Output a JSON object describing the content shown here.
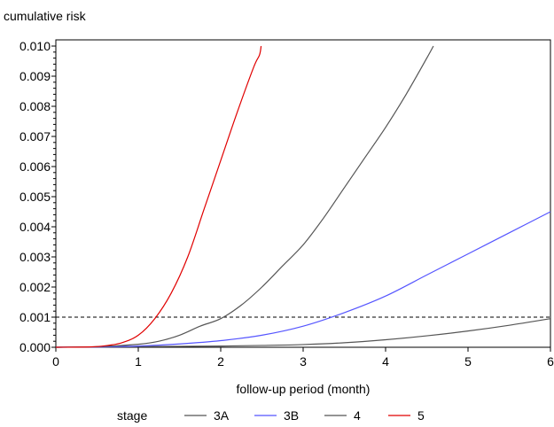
{
  "chart_data": {
    "type": "line",
    "ylabel": "cumulative risk",
    "xlabel": "follow-up period (month)",
    "xlim": [
      0,
      6
    ],
    "ylim": [
      0,
      0.01
    ],
    "x_ticks": [
      "0",
      "1",
      "2",
      "3",
      "4",
      "5",
      "6"
    ],
    "y_ticks": [
      "0.000",
      "0.001",
      "0.002",
      "0.003",
      "0.004",
      "0.005",
      "0.006",
      "0.007",
      "0.008",
      "0.009",
      "0.010"
    ],
    "grid": false,
    "legend_title": "stage",
    "legend_position": "bottom",
    "reference_line": {
      "y": 0.001,
      "style": "dashed",
      "color": "#000000"
    },
    "series": [
      {
        "name": "3A",
        "color": "#555555",
        "x": [
          0,
          0.5,
          1,
          1.5,
          2,
          2.5,
          3,
          3.5,
          4,
          4.5,
          5,
          5.5,
          6
        ],
        "y": [
          0,
          1e-05,
          2e-05,
          3e-05,
          4e-05,
          6e-05,
          9e-05,
          0.00015,
          0.00025,
          0.00038,
          0.00054,
          0.00073,
          0.00095
        ]
      },
      {
        "name": "3B",
        "color": "#5555ff",
        "x": [
          0,
          0.5,
          1,
          1.5,
          2,
          2.5,
          3,
          3.5,
          4,
          4.5,
          5,
          5.5,
          6
        ],
        "y": [
          0,
          1e-05,
          4e-05,
          0.00011,
          0.00022,
          0.0004,
          0.0007,
          0.00115,
          0.0017,
          0.0024,
          0.0031,
          0.0038,
          0.0045
        ]
      },
      {
        "name": "4",
        "color": "#555555",
        "x": [
          0,
          0.5,
          1,
          1.25,
          1.5,
          1.75,
          2,
          2.25,
          2.5,
          2.75,
          3,
          3.25,
          3.5,
          3.75,
          4,
          4.25,
          4.5,
          4.58
        ],
        "y": [
          0,
          2e-05,
          0.0001,
          0.0002,
          0.0004,
          0.0007,
          0.00095,
          0.0014,
          0.002,
          0.0027,
          0.0034,
          0.0043,
          0.0053,
          0.0063,
          0.0073,
          0.0084,
          0.0096,
          0.01
        ]
      },
      {
        "name": "5",
        "color": "#e00000",
        "x": [
          0,
          0.4,
          0.6,
          0.8,
          1.0,
          1.2,
          1.4,
          1.6,
          1.8,
          2.0,
          2.2,
          2.4,
          2.47,
          2.49
        ],
        "y": [
          0,
          1e-05,
          5e-05,
          0.00015,
          0.0004,
          0.00095,
          0.0018,
          0.003,
          0.0046,
          0.0062,
          0.0078,
          0.0093,
          0.0097,
          0.01
        ]
      }
    ]
  }
}
